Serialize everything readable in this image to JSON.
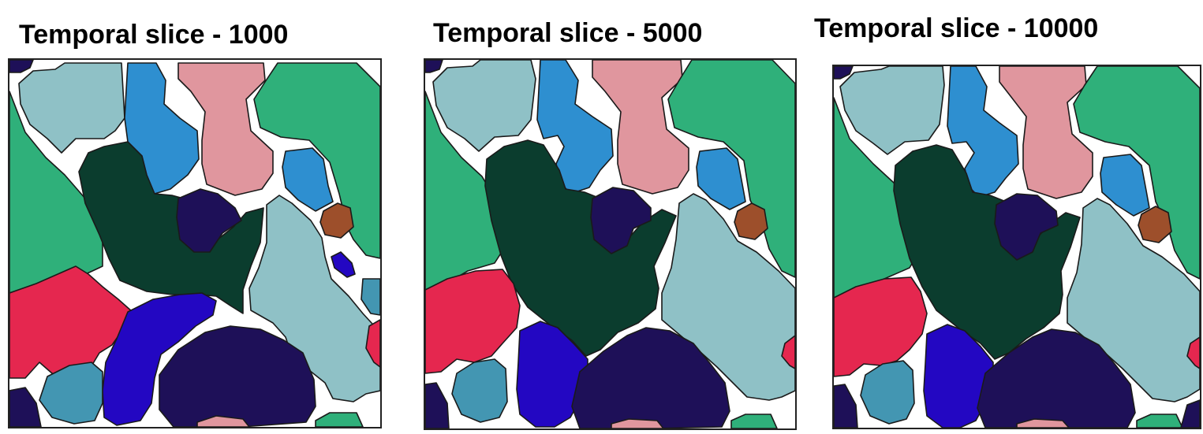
{
  "panels": [
    {
      "title": "Temporal slice - 1000"
    },
    {
      "title": "Temporal slice - 5000"
    },
    {
      "title": "Temporal slice - 10000"
    }
  ],
  "colors": {
    "light_teal": "#8fc1c6",
    "medium_blue": "#2e8fd0",
    "pink": "#e0969e",
    "green": "#2fb07a",
    "dark_green": "#0b3d2e",
    "navy": "#1e1058",
    "red": "#e5274f",
    "royal_blue": "#2307c2",
    "steel_teal": "#4396b2",
    "brown": "#9d4f2b",
    "boundary": "#1a1a1a",
    "background": "#ffffff"
  }
}
